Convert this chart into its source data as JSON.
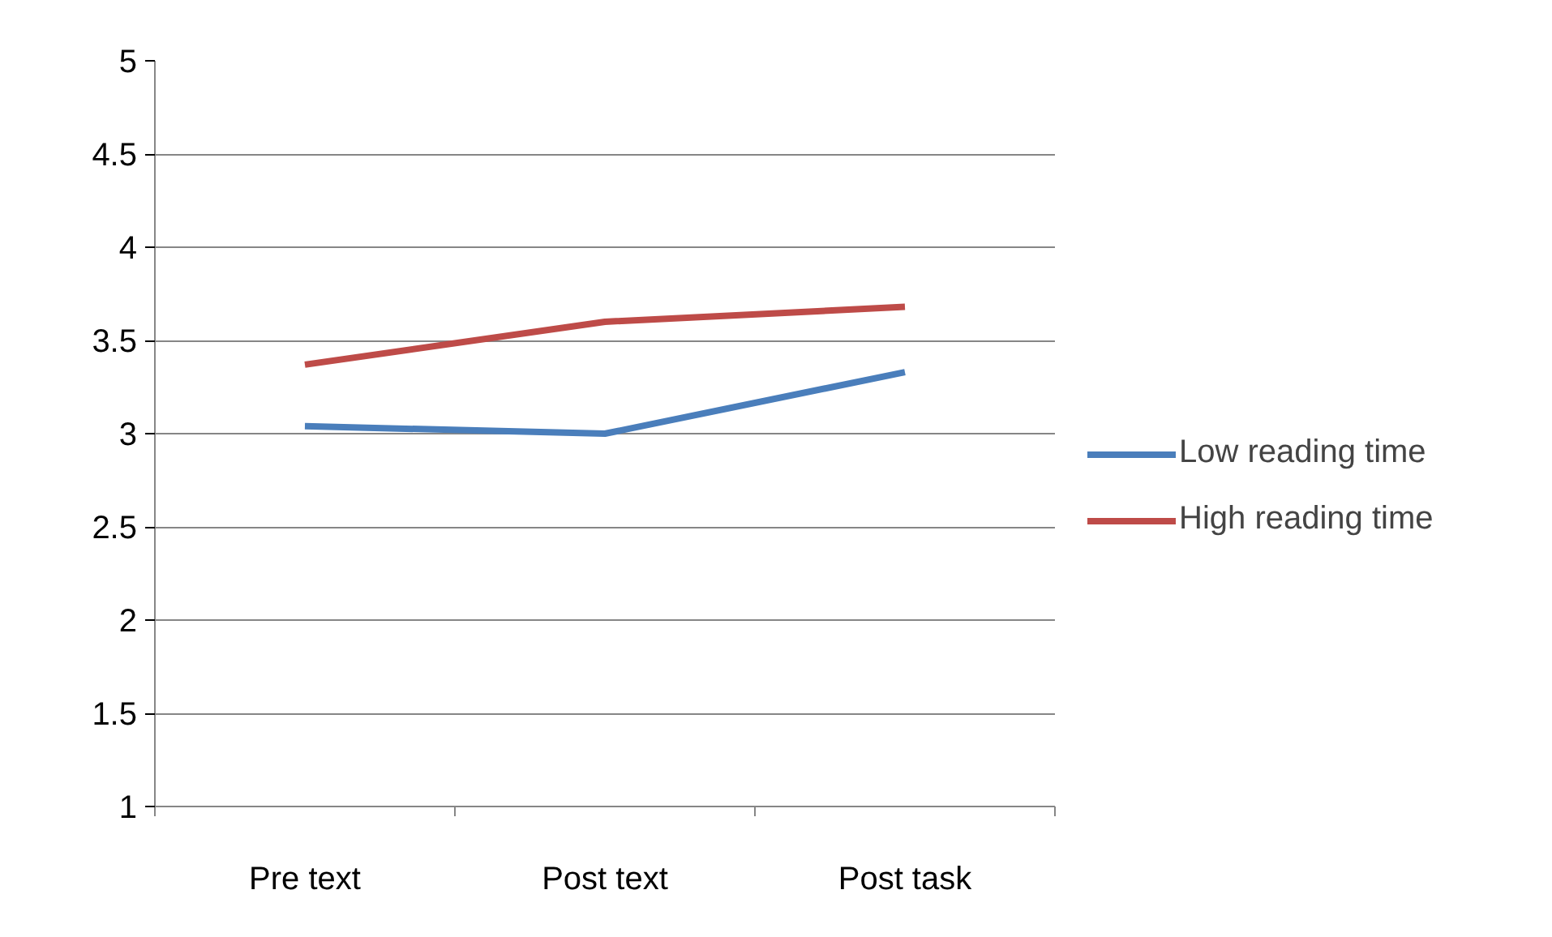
{
  "chart_data": {
    "type": "line",
    "categories": [
      "Pre text",
      "Post text",
      "Post task"
    ],
    "series": [
      {
        "name": "Low reading time",
        "color": "#4a7ebb",
        "values": [
          3.04,
          3.0,
          3.33
        ]
      },
      {
        "name": "High reading time",
        "color": "#be4b48",
        "values": [
          3.37,
          3.6,
          3.68
        ]
      }
    ],
    "ylim": [
      1,
      5
    ],
    "yticks": [
      1,
      1.5,
      2,
      2.5,
      3,
      3.5,
      4,
      4.5,
      5
    ],
    "grid": "y",
    "legend": "right",
    "marker": "none",
    "line_style": "solid"
  }
}
